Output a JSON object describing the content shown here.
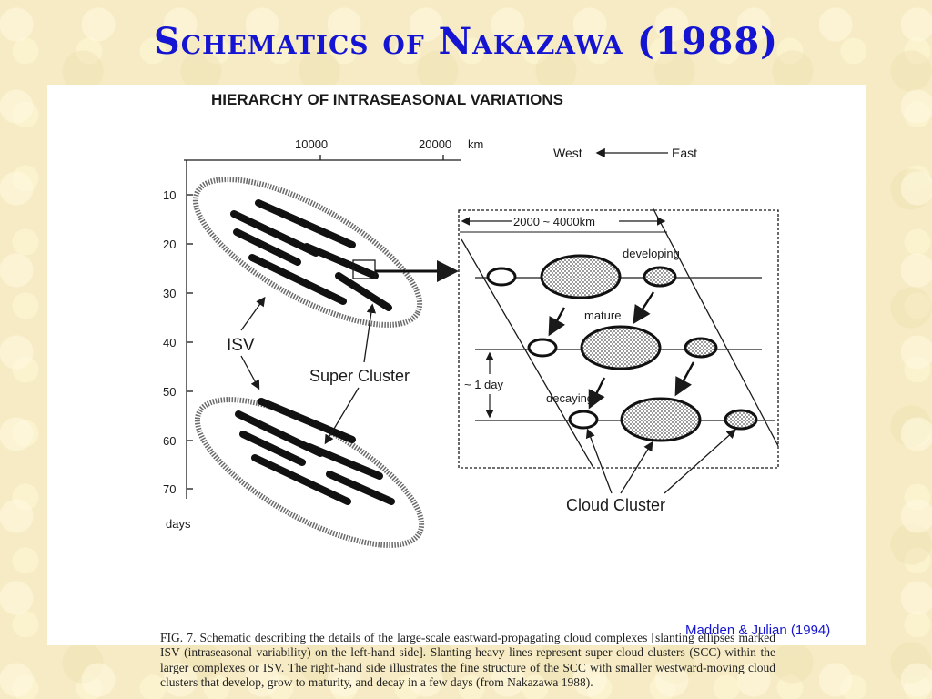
{
  "slide": {
    "title": "Schematics of Nakazawa (1988)",
    "credit": "Madden & Julian (1994)"
  },
  "figure": {
    "heading": "HIERARCHY   OF  INTRASEASONAL  VARIATIONS",
    "x_axis": {
      "tick_labels": [
        "10000",
        "20000"
      ],
      "unit": "km"
    },
    "y_axis": {
      "tick_labels": [
        "10",
        "20",
        "30",
        "40",
        "50",
        "60",
        "70"
      ],
      "unit": "days"
    },
    "direction": {
      "west": "West",
      "east": "East"
    },
    "labels": {
      "isv": "ISV",
      "super_cluster": "Super Cluster",
      "scale": "2000 ~ 4000km",
      "developing": "developing",
      "mature": "mature",
      "decaying": "decaying",
      "one_day": "~ 1 day",
      "cloud_cluster": "Cloud Cluster"
    },
    "caption": "FIG. 7. Schematic describing the details of the large-scale eastward-propagating cloud complexes [slanting ellipses marked ISV (intraseasonal variability) on the left-hand side]. Slanting heavy lines represent super cloud clusters (SCC) within the larger complexes or ISV. The right-hand side illustrates the fine structure of the SCC with smaller westward-moving cloud clusters that develop, grow to maturity, and decay in a few days (from Nakazawa 1988)."
  },
  "colors": {
    "title": "#1414d2",
    "credit": "#1414d2",
    "background": "#f6ebc4",
    "ink": "#1a1a1a"
  }
}
